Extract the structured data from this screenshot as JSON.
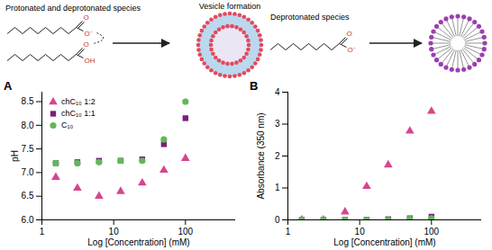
{
  "diagram": {
    "left_label": "Protonated and deprotonated species",
    "center_label": "Vesicle formation",
    "right_label": "Deprotonated species",
    "carboxylate_atoms": [
      "O",
      "O⁻"
    ],
    "acid_atoms": [
      "O",
      "OH"
    ]
  },
  "chart_data": [
    {
      "type": "scatter",
      "title": "A",
      "xlabel": "Log [Concentration] (mM)",
      "ylabel": "pH",
      "x": [
        1.5625,
        3.125,
        6.25,
        12.5,
        25,
        50,
        100
      ],
      "series": [
        {
          "name": "chC₁₀ 1:2",
          "color": "#d6458f",
          "marker": "triangle",
          "values": [
            6.9,
            6.67,
            6.5,
            6.6,
            6.78,
            7.05,
            7.3
          ]
        },
        {
          "name": "chC₁₀ 1:1",
          "color": "#7b1e7a",
          "marker": "square",
          "values": [
            7.2,
            7.22,
            7.25,
            7.25,
            7.28,
            7.6,
            8.15
          ]
        },
        {
          "name": "C₁₀",
          "color": "#5fb85a",
          "marker": "circle",
          "values": [
            7.2,
            7.2,
            7.22,
            7.25,
            7.25,
            7.7,
            8.5
          ]
        }
      ],
      "log": "x",
      "xlim": [
        1,
        500
      ],
      "xticks": [
        1,
        10,
        100
      ],
      "ylim": [
        6,
        8.7
      ],
      "yticks": [
        {
          "value": 6,
          "label": "6.0"
        },
        6.5,
        {
          "value": 7,
          "label": "7.0"
        },
        7.5,
        {
          "value": 8,
          "label": "8.0"
        },
        8.5
      ],
      "legend": "top-left"
    },
    {
      "type": "scatter",
      "title": "B",
      "xlabel": "Log [Concentration] (mM)",
      "ylabel": "Absorbance (350 nm)",
      "x": [
        1.5625,
        3.125,
        6.25,
        12.5,
        25,
        50,
        100
      ],
      "series": [
        {
          "name": "chC₁₀ 1:2",
          "color": "#d6458f",
          "marker": "triangle",
          "values": [
            0,
            0,
            0.25,
            1.05,
            1.72,
            2.78,
            3.4
          ]
        },
        {
          "name": "chC₁₀ 1:1",
          "color": "#7b1e7a",
          "marker": "square",
          "values": [
            0,
            0,
            0,
            0,
            0.02,
            0.05,
            0.1
          ]
        },
        {
          "name": "C₁₀",
          "color": "#5fb85a",
          "marker": "circle",
          "values": [
            0,
            0,
            0,
            0,
            0,
            0.03,
            0.05
          ]
        }
      ],
      "log": "x",
      "xlim": [
        1,
        500
      ],
      "xticks": [
        1,
        10,
        100
      ],
      "ylim": [
        0,
        4
      ],
      "yticks": [
        0,
        1,
        2,
        3,
        4
      ]
    }
  ]
}
